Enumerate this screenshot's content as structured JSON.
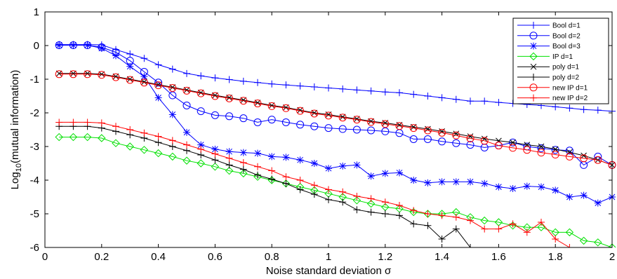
{
  "chart_data": {
    "type": "line",
    "xlabel": "Noise standard deviation σ",
    "ylabel_prefix": "Log",
    "ylabel_sub": "10",
    "ylabel_suffix": "(mutual information)",
    "xlim": [
      0,
      2
    ],
    "ylim": [
      -6,
      1
    ],
    "grid": false,
    "legend_position": "top-right",
    "x_ticks": [
      {
        "value": 0,
        "label": "0"
      },
      {
        "value": 0.2,
        "label": "0.2"
      },
      {
        "value": 0.4,
        "label": "0.4"
      },
      {
        "value": 0.6,
        "label": "0.6"
      },
      {
        "value": 0.8,
        "label": "0.8"
      },
      {
        "value": 1,
        "label": "1"
      },
      {
        "value": 1.2,
        "label": "1.2"
      },
      {
        "value": 1.4,
        "label": "1.4"
      },
      {
        "value": 1.6,
        "label": "1.6"
      },
      {
        "value": 1.8,
        "label": "1.8"
      },
      {
        "value": 2,
        "label": "2"
      }
    ],
    "y_ticks": [
      {
        "value": 1,
        "label": "1"
      },
      {
        "value": 0,
        "label": "0"
      },
      {
        "value": -1,
        "label": "-1"
      },
      {
        "value": -2,
        "label": "-2"
      },
      {
        "value": -3,
        "label": "-3"
      },
      {
        "value": -4,
        "label": "-4"
      },
      {
        "value": -5,
        "label": "-5"
      },
      {
        "value": -6,
        "label": "-6"
      }
    ],
    "x": [
      0.05,
      0.1,
      0.15,
      0.2,
      0.25,
      0.3,
      0.35,
      0.4,
      0.45,
      0.5,
      0.55,
      0.6,
      0.65,
      0.7,
      0.75,
      0.8,
      0.85,
      0.9,
      0.95,
      1.0,
      1.05,
      1.1,
      1.15,
      1.2,
      1.25,
      1.3,
      1.35,
      1.4,
      1.45,
      1.5,
      1.55,
      1.6,
      1.65,
      1.7,
      1.75,
      1.8,
      1.85,
      1.9,
      1.95,
      2.0
    ],
    "series": [
      {
        "name": "Bool d=1",
        "color": "#0000ff",
        "marker": "plus",
        "values": [
          0.03,
          0.03,
          0.03,
          0.02,
          -0.12,
          -0.25,
          -0.38,
          -0.57,
          -0.7,
          -0.83,
          -0.9,
          -0.96,
          -1.01,
          -1.06,
          -1.1,
          -1.14,
          -1.17,
          -1.2,
          -1.23,
          -1.26,
          -1.29,
          -1.32,
          -1.35,
          -1.38,
          -1.4,
          -1.45,
          -1.5,
          -1.55,
          -1.6,
          -1.65,
          -1.65,
          -1.69,
          -1.72,
          -1.75,
          -1.78,
          -1.82,
          -1.86,
          -1.9,
          -1.92,
          -1.95
        ]
      },
      {
        "name": "Bool d=2",
        "color": "#0000ff",
        "marker": "circle",
        "values": [
          0.01,
          0.01,
          0.01,
          -0.05,
          -0.2,
          -0.45,
          -0.78,
          -1.1,
          -1.48,
          -1.78,
          -1.95,
          -2.07,
          -2.1,
          -2.16,
          -2.28,
          -2.2,
          -2.28,
          -2.35,
          -2.4,
          -2.45,
          -2.48,
          -2.5,
          -2.52,
          -2.55,
          -2.6,
          -2.78,
          -2.78,
          -2.85,
          -2.9,
          -2.95,
          -3.03,
          -2.97,
          -2.88,
          -3.0,
          -3.05,
          -3.1,
          -3.12,
          -3.55,
          -3.3,
          -3.55
        ]
      },
      {
        "name": "Bool d=3",
        "color": "#0000ff",
        "marker": "star",
        "values": [
          0.01,
          0.01,
          0.01,
          -0.08,
          -0.3,
          -0.62,
          -0.92,
          -1.55,
          -2.05,
          -2.58,
          -2.95,
          -3.08,
          -3.15,
          -3.18,
          -3.2,
          -3.3,
          -3.32,
          -3.4,
          -3.5,
          -3.65,
          -3.58,
          -3.55,
          -3.88,
          -3.8,
          -3.78,
          -4.0,
          -4.08,
          -4.05,
          -4.05,
          -4.05,
          -4.1,
          -4.2,
          -4.25,
          -4.18,
          -4.2,
          -4.3,
          -4.5,
          -4.45,
          -4.68,
          -4.5
        ]
      },
      {
        "name": "IP d=1",
        "color": "#00e000",
        "marker": "diamond",
        "values": [
          -2.72,
          -2.72,
          -2.72,
          -2.75,
          -2.9,
          -3.0,
          -3.1,
          -3.2,
          -3.3,
          -3.42,
          -3.5,
          -3.6,
          -3.72,
          -3.8,
          -3.9,
          -4.0,
          -4.1,
          -4.2,
          -4.3,
          -4.4,
          -4.5,
          -4.6,
          -4.7,
          -4.8,
          -4.85,
          -4.95,
          -5.0,
          -5.0,
          -4.95,
          -5.1,
          -5.2,
          -5.25,
          -5.35,
          -5.4,
          -5.4,
          -5.55,
          -5.55,
          -5.8,
          -5.85,
          -6.0
        ]
      },
      {
        "name": "poly d=1",
        "color": "#000000",
        "marker": "x",
        "values": [
          -0.83,
          -0.83,
          -0.83,
          -0.85,
          -0.92,
          -1.0,
          -1.08,
          -1.16,
          -1.24,
          -1.32,
          -1.4,
          -1.48,
          -1.55,
          -1.62,
          -1.7,
          -1.78,
          -1.84,
          -1.92,
          -2.0,
          -2.05,
          -2.12,
          -2.18,
          -2.25,
          -2.3,
          -2.36,
          -2.42,
          -2.48,
          -2.55,
          -2.62,
          -2.7,
          -2.77,
          -2.83,
          -2.88,
          -2.95,
          -3.0,
          -3.08,
          -3.17,
          -3.27,
          -3.4,
          -3.55
        ]
      },
      {
        "name": "poly d=2",
        "color": "#000000",
        "marker": "plus",
        "values": [
          -2.4,
          -2.4,
          -2.4,
          -2.45,
          -2.55,
          -2.65,
          -2.75,
          -2.88,
          -3.0,
          -3.12,
          -3.25,
          -3.4,
          -3.55,
          -3.68,
          -3.85,
          -3.97,
          -4.1,
          -4.28,
          -4.42,
          -4.58,
          -4.65,
          -4.88,
          -4.95,
          -5.0,
          -5.05,
          -5.3,
          -5.35,
          -5.75,
          -5.45,
          -6.0,
          null,
          null,
          null,
          null,
          null,
          null,
          null,
          null,
          null,
          null
        ]
      },
      {
        "name": "new IP d=1",
        "color": "#ff0000",
        "marker": "circle",
        "values": [
          -0.85,
          -0.85,
          -0.85,
          -0.87,
          -0.94,
          -1.02,
          -1.1,
          -1.18,
          -1.26,
          -1.34,
          -1.42,
          -1.5,
          -1.57,
          -1.64,
          -1.72,
          -1.8,
          -1.86,
          -1.94,
          -2.02,
          -2.08,
          -2.14,
          -2.2,
          -2.27,
          -2.33,
          -2.39,
          -2.45,
          -2.52,
          -2.59,
          -2.67,
          -2.76,
          -2.83,
          -2.97,
          -3.04,
          -3.1,
          -3.18,
          -3.24,
          -3.3,
          -3.35,
          -3.4,
          -3.55
        ]
      },
      {
        "name": "new IP d=2",
        "color": "#ff0000",
        "marker": "plus",
        "values": [
          -2.28,
          -2.28,
          -2.28,
          -2.3,
          -2.4,
          -2.5,
          -2.6,
          -2.7,
          -2.82,
          -2.95,
          -3.08,
          -3.22,
          -3.35,
          -3.48,
          -3.6,
          -3.72,
          -3.9,
          -4.0,
          -4.15,
          -4.28,
          -4.35,
          -4.48,
          -4.55,
          -4.65,
          -4.75,
          -4.9,
          -5.0,
          -5.05,
          -5.1,
          -5.2,
          -5.45,
          -5.45,
          -5.3,
          -5.55,
          -5.25,
          -5.75,
          -6.0,
          null,
          null,
          null
        ]
      }
    ]
  }
}
